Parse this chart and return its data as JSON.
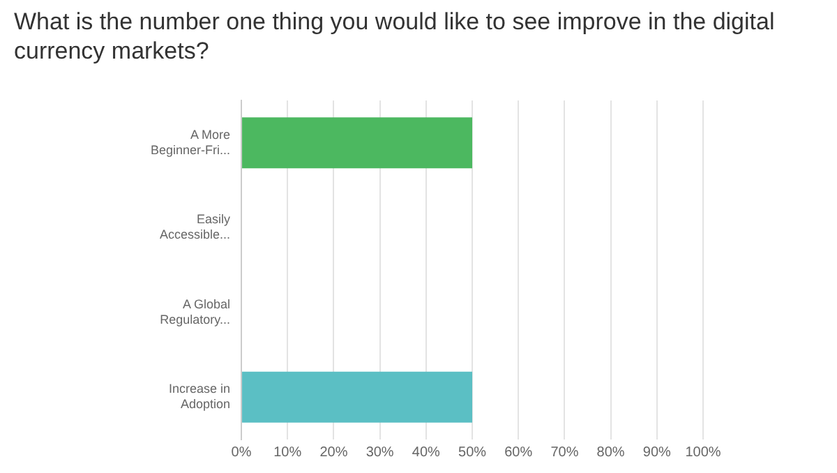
{
  "chart_data": {
    "type": "bar",
    "orientation": "horizontal",
    "title": "What is the number one thing you would like to see improve in the digital currency markets?",
    "categories": [
      "A More Beginner-Fri...",
      "Easily Accessible...",
      "A Global Regulatory...",
      "Increase in Adoption"
    ],
    "values": [
      50,
      0,
      0,
      50
    ],
    "colors": [
      "#4cb860",
      "#f0a64e",
      "#a26db4",
      "#5bbfc4"
    ],
    "xlim": [
      0,
      100
    ],
    "xticks": [
      {
        "value": 0,
        "label": "0%"
      },
      {
        "value": 10,
        "label": "10%"
      },
      {
        "value": 20,
        "label": "20%"
      },
      {
        "value": 30,
        "label": "30%"
      },
      {
        "value": 40,
        "label": "40%"
      },
      {
        "value": 50,
        "label": "50%"
      },
      {
        "value": 60,
        "label": "60%"
      },
      {
        "value": 70,
        "label": "70%"
      },
      {
        "value": 80,
        "label": "80%"
      },
      {
        "value": 90,
        "label": "90%"
      },
      {
        "value": 100,
        "label": "100%"
      }
    ],
    "grid": "x",
    "legend": false
  }
}
